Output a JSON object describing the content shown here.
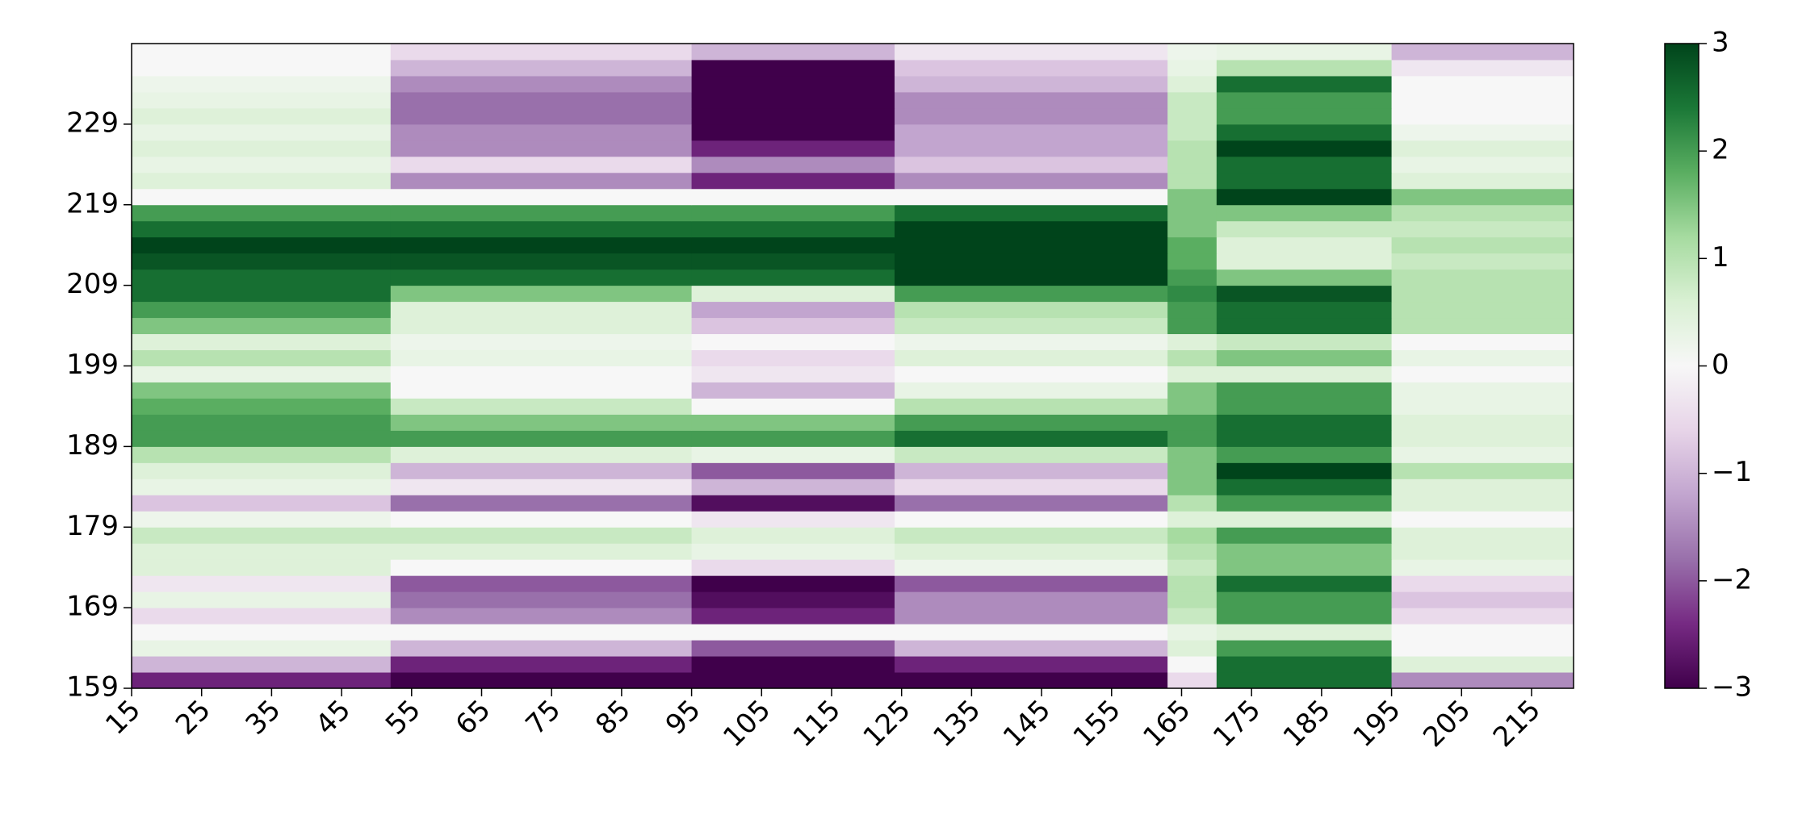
{
  "chart_data": {
    "type": "heatmap",
    "x": [
      15,
      52,
      95,
      124,
      163,
      170,
      195,
      221
    ],
    "xlim": [
      15,
      221
    ],
    "ylim": [
      159,
      239
    ],
    "xticks": [
      15,
      25,
      35,
      45,
      55,
      65,
      75,
      85,
      95,
      105,
      115,
      125,
      135,
      145,
      155,
      165,
      175,
      185,
      195,
      205,
      215
    ],
    "yticks": [
      159,
      169,
      179,
      189,
      199,
      209,
      219,
      229
    ],
    "zlim": [
      -3,
      3
    ],
    "zticks": [
      {
        "value": -3,
        "label": "−3"
      },
      {
        "value": -2,
        "label": "−2"
      },
      {
        "value": -1,
        "label": "−1"
      },
      0,
      1,
      2,
      3
    ],
    "colors": [
      "#40004b",
      "#762a83",
      "#9970ab",
      "#c2a5cf",
      "#e7d4e8",
      "#f7f7f7",
      "#d9f0d3",
      "#a6dba0",
      "#5aae61",
      "#1b7837",
      "#00441b"
    ],
    "z": [
      [
        -2.5,
        -3,
        -3,
        -3,
        -0.5,
        2.5,
        -1.5
      ],
      [
        -1,
        -2.5,
        -3,
        -2.5,
        0,
        2.5,
        0.5
      ],
      [
        0.3,
        -1,
        -2,
        -1,
        0.5,
        2,
        0
      ],
      [
        0,
        0,
        0,
        0,
        0.3,
        0.5,
        0
      ],
      [
        -0.5,
        -1.5,
        -2.5,
        -1.5,
        0.8,
        2,
        -0.5
      ],
      [
        0.3,
        -1.8,
        -2.8,
        -1.5,
        1,
        2,
        -0.8
      ],
      [
        -0.3,
        -2,
        -3,
        -2,
        1,
        2.5,
        -0.5
      ],
      [
        0.5,
        0,
        -0.5,
        0.2,
        0.8,
        1.5,
        0.3
      ],
      [
        0.5,
        0.5,
        0.3,
        0.5,
        1,
        1.5,
        0.5
      ],
      [
        0.8,
        0.8,
        0.5,
        0.8,
        1.2,
        2,
        0.5
      ],
      [
        0.2,
        0,
        -0.3,
        0,
        0.5,
        0.5,
        0
      ],
      [
        -0.8,
        -1.8,
        -2.8,
        -1.8,
        1,
        2,
        0.5
      ],
      [
        0.3,
        -0.3,
        -1,
        -0.5,
        1.5,
        2.5,
        0.5
      ],
      [
        0.5,
        -1,
        -2,
        -1,
        1.5,
        3,
        1
      ],
      [
        1,
        0.5,
        0.3,
        0.8,
        1.5,
        2,
        0.3
      ],
      [
        2,
        2,
        2,
        2.5,
        2,
        2.5,
        0.5
      ],
      [
        2,
        1.5,
        1.5,
        2,
        2,
        2.5,
        0.5
      ],
      [
        1.8,
        0.8,
        0,
        1,
        1.5,
        2,
        0.3
      ],
      [
        1.5,
        0,
        -1,
        0.3,
        1.5,
        2,
        0.3
      ],
      [
        0.3,
        0,
        -0.3,
        0,
        0.5,
        0.5,
        0
      ],
      [
        1,
        0.3,
        -0.5,
        0.5,
        1,
        1.5,
        0.3
      ],
      [
        0.5,
        0.2,
        0,
        0.2,
        0.5,
        0.8,
        0
      ],
      [
        1.5,
        0.5,
        -0.8,
        0.8,
        2,
        2.5,
        1
      ],
      [
        2,
        0.5,
        -1.2,
        1,
        2,
        2.5,
        1
      ],
      [
        2.5,
        1.5,
        0.5,
        2,
        2.2,
        2.8,
        1
      ],
      [
        2.5,
        2.5,
        2.5,
        3,
        2,
        1.5,
        1
      ],
      [
        2.8,
        2.8,
        2.8,
        3,
        1.8,
        0.5,
        0.8
      ],
      [
        3,
        3,
        3,
        3,
        1.8,
        0.5,
        1
      ],
      [
        2.5,
        2.5,
        2.5,
        3,
        1.5,
        0.8,
        0.8
      ],
      [
        2,
        2,
        2,
        2.5,
        1.5,
        1.5,
        1
      ],
      [
        0,
        0,
        0,
        0,
        1.5,
        3,
        1.5
      ],
      [
        0.5,
        -1.5,
        -2.5,
        -1.5,
        1,
        2.5,
        0.5
      ],
      [
        0.3,
        -0.5,
        -1.5,
        -0.8,
        1,
        2.5,
        0.3
      ],
      [
        0.5,
        -1.5,
        -2.5,
        -1.2,
        1,
        3,
        0.5
      ],
      [
        0.3,
        -1.5,
        -3,
        -1.2,
        0.8,
        2.5,
        0.2
      ],
      [
        0.5,
        -1.8,
        -3,
        -1.5,
        0.8,
        2,
        0
      ],
      [
        0.3,
        -1.8,
        -3,
        -1.5,
        0.8,
        2,
        0
      ],
      [
        0.2,
        -1.5,
        -3,
        -1,
        0.5,
        2.5,
        0
      ],
      [
        0,
        -1,
        -3,
        -0.8,
        0.3,
        1,
        -0.3
      ],
      [
        0,
        -0.5,
        -1,
        -0.3,
        0.2,
        0.3,
        -1
      ]
    ]
  }
}
